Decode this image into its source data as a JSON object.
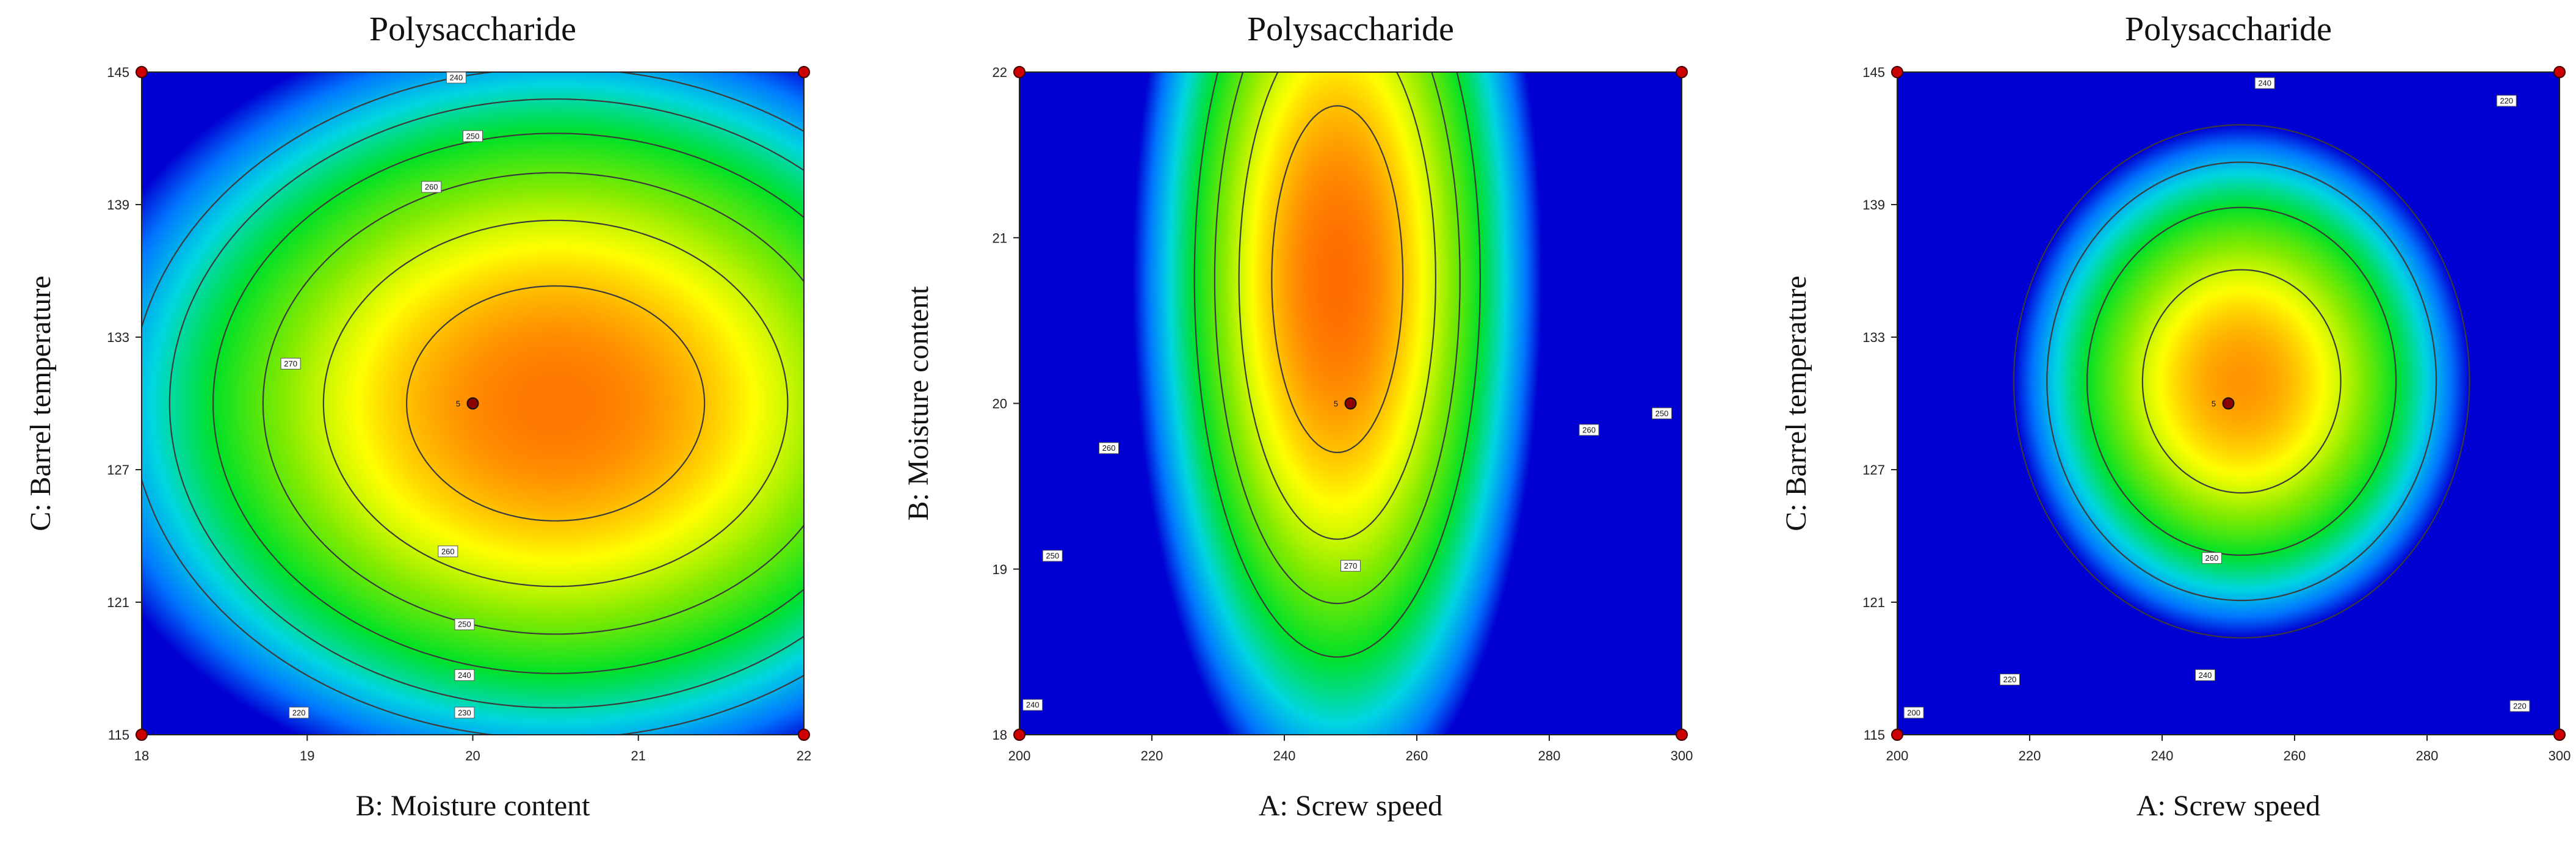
{
  "chart_data": [
    {
      "type": "heatmap",
      "subtype": "contour",
      "title": "Polysaccharide",
      "xlabel": "B:  Moisture content",
      "ylabel": "C:  Barrel temperature",
      "xlim": [
        18,
        22
      ],
      "ylim": [
        115,
        145
      ],
      "xticks": [
        18,
        19,
        20,
        21,
        22
      ],
      "yticks": [
        115,
        121,
        127,
        133,
        139,
        145
      ],
      "x_tick_labels": [
        "18",
        "19",
        "20",
        "21",
        "22"
      ],
      "y_tick_labels": [
        "115",
        "121",
        "127",
        "133",
        "139",
        "145"
      ],
      "color_scale": "blue-green-yellow-red",
      "color_range": [
        200,
        285
      ],
      "response": {
        "peak": 277,
        "cx": 20.5,
        "cy": 130,
        "sx": 3.4,
        "sy": 20.1,
        "rho": 0.0
      },
      "contour_levels": [
        220,
        230,
        240,
        250,
        260,
        270
      ],
      "contour_labels": [
        {
          "text": "240",
          "x": 19.9,
          "y": 144.75
        },
        {
          "text": "250",
          "x": 20.0,
          "y": 142.1
        },
        {
          "text": "260",
          "x": 19.75,
          "y": 139.8
        },
        {
          "text": "270",
          "x": 18.9,
          "y": 131.8
        },
        {
          "text": "260",
          "x": 19.85,
          "y": 123.3
        },
        {
          "text": "250",
          "x": 19.95,
          "y": 120.0
        },
        {
          "text": "240",
          "x": 19.95,
          "y": 117.7
        },
        {
          "text": "230",
          "x": 19.95,
          "y": 116.0
        },
        {
          "text": "220",
          "x": 18.95,
          "y": 116.0
        }
      ],
      "center_point": {
        "label": "5",
        "x": 20,
        "y": 130
      },
      "design_points": [
        {
          "x": 18,
          "y": 145
        },
        {
          "x": 22,
          "y": 145
        },
        {
          "x": 18,
          "y": 115
        },
        {
          "x": 22,
          "y": 115
        }
      ]
    },
    {
      "type": "heatmap",
      "subtype": "contour",
      "title": "Polysaccharide",
      "xlabel": "A:  Screw speed",
      "ylabel": "B:  Moisture content",
      "xlim": [
        200,
        300
      ],
      "ylim": [
        18,
        22
      ],
      "xticks": [
        200,
        220,
        240,
        260,
        280,
        300
      ],
      "yticks": [
        18,
        19,
        20,
        21,
        22
      ],
      "x_tick_labels": [
        "200",
        "220",
        "240",
        "260",
        "280",
        "300"
      ],
      "y_tick_labels": [
        "18",
        "19",
        "20",
        "21",
        "22"
      ],
      "color_scale": "blue-green-yellow-red",
      "color_range": [
        200,
        285
      ],
      "response": {
        "peak": 278,
        "cx": 248,
        "cy": 20.75,
        "sx": 35.0,
        "sy": 3.7,
        "rho": 0.0
      },
      "contour_levels": [
        240,
        250,
        260,
        270
      ],
      "contour_labels": [
        {
          "text": "260",
          "x": 213.5,
          "y": 19.73
        },
        {
          "text": "250",
          "x": 205.0,
          "y": 19.08
        },
        {
          "text": "240",
          "x": 202.0,
          "y": 18.18
        },
        {
          "text": "270",
          "x": 250.0,
          "y": 19.02
        },
        {
          "text": "260",
          "x": 286.0,
          "y": 19.84
        },
        {
          "text": "250",
          "x": 297.0,
          "y": 19.94
        }
      ],
      "center_point": {
        "label": "5",
        "x": 250,
        "y": 20
      },
      "design_points": [
        {
          "x": 200,
          "y": 22
        },
        {
          "x": 300,
          "y": 22
        },
        {
          "x": 200,
          "y": 18
        },
        {
          "x": 300,
          "y": 18
        }
      ]
    },
    {
      "type": "heatmap",
      "subtype": "contour",
      "title": "Polysaccharide",
      "xlabel": "A:  Screw speed",
      "ylabel": "C:  Barrel temperature",
      "xlim": [
        200,
        300
      ],
      "ylim": [
        115,
        145
      ],
      "xticks": [
        200,
        220,
        240,
        260,
        280,
        300
      ],
      "yticks": [
        115,
        121,
        127,
        133,
        139,
        145
      ],
      "x_tick_labels": [
        "200",
        "220",
        "240",
        "260",
        "280",
        "300"
      ],
      "y_tick_labels": [
        "115",
        "121",
        "127",
        "133",
        "139",
        "145"
      ],
      "color_scale": "blue-green-yellow-red",
      "color_range": [
        200,
        285
      ],
      "response": {
        "peak": 274,
        "cx": 252,
        "cy": 131,
        "sx": 40.0,
        "sy": 13.5,
        "rho": 0.0
      },
      "contour_levels": [
        200,
        220,
        240,
        260
      ],
      "contour_labels": [
        {
          "text": "240",
          "x": 255.5,
          "y": 144.5
        },
        {
          "text": "220",
          "x": 292.0,
          "y": 143.7
        },
        {
          "text": "260",
          "x": 247.5,
          "y": 123.0
        },
        {
          "text": "240",
          "x": 246.5,
          "y": 117.7
        },
        {
          "text": "220",
          "x": 217.0,
          "y": 117.5
        },
        {
          "text": "200",
          "x": 202.5,
          "y": 116.0
        },
        {
          "text": "220",
          "x": 294.0,
          "y": 116.3
        }
      ],
      "center_point": {
        "label": "5",
        "x": 250,
        "y": 130
      },
      "design_points": [
        {
          "x": 200,
          "y": 145
        },
        {
          "x": 300,
          "y": 145
        },
        {
          "x": 200,
          "y": 115
        },
        {
          "x": 300,
          "y": 115
        }
      ]
    }
  ]
}
